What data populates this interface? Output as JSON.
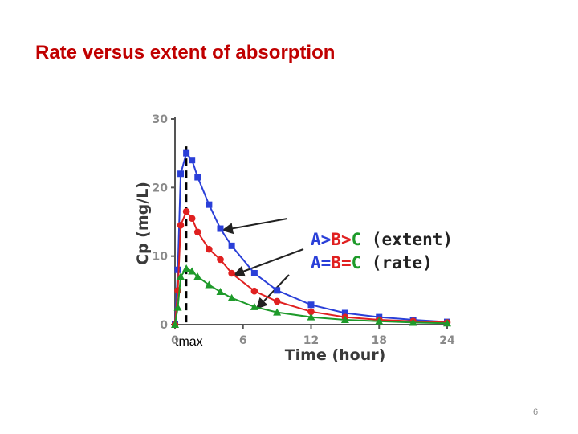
{
  "slide": {
    "title": "Rate versus extent of absorption",
    "number": "6"
  },
  "colors": {
    "title": "#c00000",
    "series_A": "#2a3fd8",
    "series_B": "#e02020",
    "series_C": "#1e9a2a",
    "axis": "#555555"
  },
  "chart_data": {
    "type": "line",
    "title": "",
    "xlabel": "Time (hour)",
    "ylabel": "Cp (mg/L)",
    "xlim": [
      0,
      24
    ],
    "ylim": [
      0,
      30
    ],
    "xticks": [
      0,
      6,
      12,
      18,
      24
    ],
    "yticks": [
      0,
      10,
      20,
      30
    ],
    "grid": false,
    "series": [
      {
        "key": "A",
        "marker": "square",
        "x": [
          0,
          0.25,
          0.5,
          1,
          1.5,
          2,
          3,
          4,
          5,
          7,
          9,
          12,
          15,
          18,
          21,
          24
        ],
        "y": [
          0,
          8,
          22,
          25,
          24,
          21.5,
          17.5,
          14,
          11.5,
          7.5,
          5,
          2.9,
          1.7,
          1.1,
          0.7,
          0.4
        ]
      },
      {
        "key": "B",
        "marker": "circle",
        "x": [
          0,
          0.25,
          0.5,
          1,
          1.5,
          2,
          3,
          4,
          5,
          7,
          9,
          12,
          15,
          18,
          21,
          24
        ],
        "y": [
          0,
          5,
          14.5,
          16.5,
          15.5,
          13.5,
          11,
          9.5,
          7.5,
          4.9,
          3.4,
          1.9,
          1.1,
          0.7,
          0.5,
          0.3
        ]
      },
      {
        "key": "C",
        "marker": "triangle",
        "x": [
          0,
          0.25,
          0.5,
          1,
          1.5,
          2,
          3,
          4,
          5,
          7,
          9,
          12,
          15,
          18,
          21,
          24
        ],
        "y": [
          0,
          2.5,
          7,
          8.2,
          7.8,
          7,
          5.8,
          4.8,
          3.9,
          2.6,
          1.8,
          1.1,
          0.7,
          0.5,
          0.3,
          0.2
        ]
      }
    ],
    "tmax": {
      "x": 1,
      "label": "tmax"
    },
    "annotation": {
      "line1": [
        {
          "text": "A>",
          "color": "#2a3fd8"
        },
        {
          "text": "B>",
          "color": "#e02020"
        },
        {
          "text": "C",
          "color": "#1e9a2a"
        },
        {
          "text": " (extent)",
          "color": "#222222"
        }
      ],
      "line2": [
        {
          "text": "A=",
          "color": "#2a3fd8"
        },
        {
          "text": "B=",
          "color": "#e02020"
        },
        {
          "text": "C",
          "color": "#1e9a2a"
        },
        {
          "text": " (rate)",
          "color": "#222222"
        }
      ],
      "arrow_targets": [
        {
          "series": "A",
          "x": 4
        },
        {
          "series": "B",
          "x": 5
        },
        {
          "series": "C",
          "x": 7
        }
      ]
    }
  }
}
